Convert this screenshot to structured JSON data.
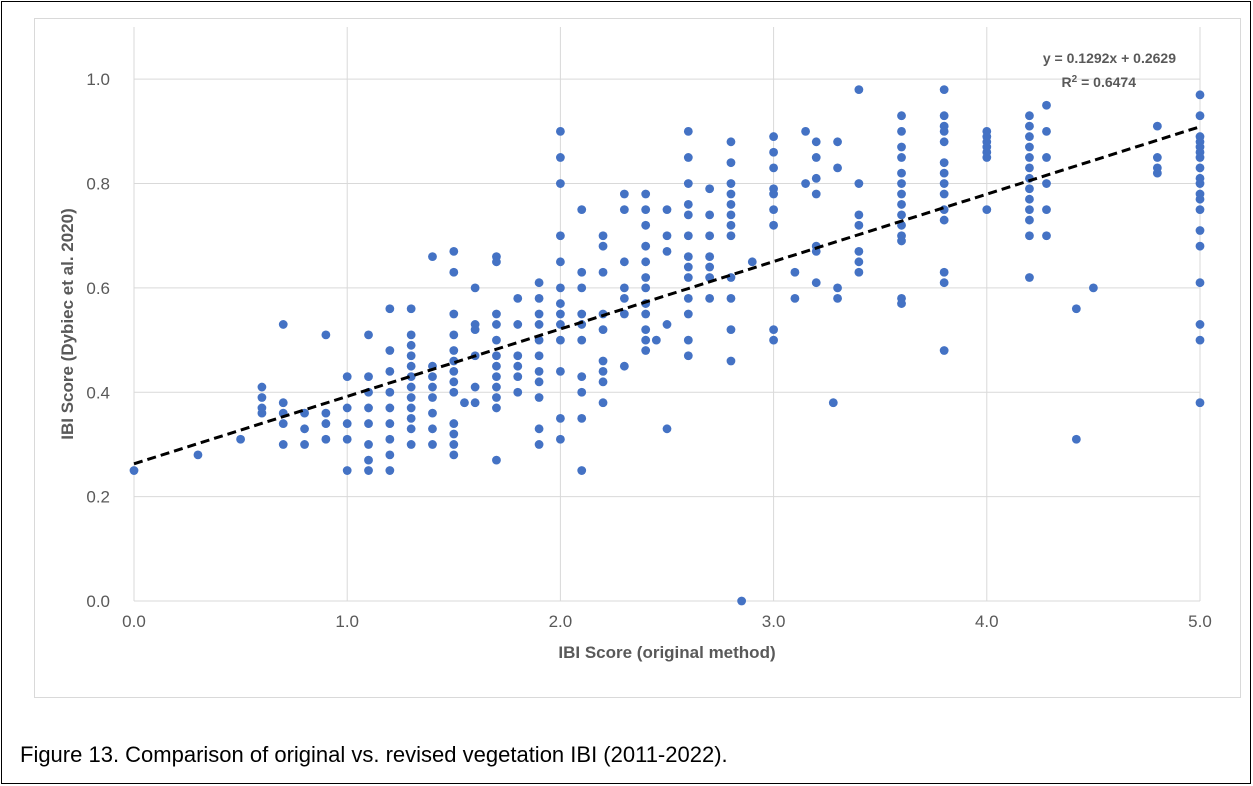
{
  "figure": {
    "caption": "Figure 13. Comparison of original vs. revised vegetation IBI (2011-2022)."
  },
  "chart_data": {
    "type": "scatter",
    "title": "",
    "xlabel": "IBI Score (original method)",
    "ylabel": "IBI Score (Dybiec et al. 2020)",
    "xlim": [
      0,
      5
    ],
    "ylim": [
      0,
      1.1
    ],
    "x_ticks": [
      "0.0",
      "1.0",
      "2.0",
      "3.0",
      "4.0",
      "5.0"
    ],
    "y_ticks": [
      "0.0",
      "0.2",
      "0.4",
      "0.6",
      "0.8",
      "1.0"
    ],
    "grid": true,
    "legend": "none",
    "colors": {
      "points": "#4472c4",
      "trendline": "#000000",
      "grid": "#d9d9d9",
      "text": "#595959"
    },
    "trendline": {
      "slope": 0.1292,
      "intercept": 0.2629,
      "equation": "y = 0.1292x + 0.2629",
      "r2_label": "R",
      "r2_exp": "2",
      "r2_value": " = 0.6474"
    },
    "points": [
      [
        0,
        0.25
      ],
      [
        0.3,
        0.28
      ],
      [
        0.5,
        0.31
      ],
      [
        0.6,
        0.41
      ],
      [
        0.6,
        0.39
      ],
      [
        0.6,
        0.37
      ],
      [
        0.6,
        0.36
      ],
      [
        0.7,
        0.53
      ],
      [
        0.7,
        0.38
      ],
      [
        0.7,
        0.36
      ],
      [
        0.7,
        0.34
      ],
      [
        0.7,
        0.3
      ],
      [
        0.8,
        0.36
      ],
      [
        0.8,
        0.33
      ],
      [
        0.8,
        0.3
      ],
      [
        0.9,
        0.51
      ],
      [
        0.9,
        0.36
      ],
      [
        0.9,
        0.34
      ],
      [
        0.9,
        0.31
      ],
      [
        1.0,
        0.43
      ],
      [
        1.0,
        0.37
      ],
      [
        1.0,
        0.34
      ],
      [
        1.0,
        0.31
      ],
      [
        1.0,
        0.25
      ],
      [
        1.1,
        0.51
      ],
      [
        1.1,
        0.43
      ],
      [
        1.1,
        0.4
      ],
      [
        1.1,
        0.37
      ],
      [
        1.1,
        0.34
      ],
      [
        1.1,
        0.3
      ],
      [
        1.1,
        0.27
      ],
      [
        1.1,
        0.25
      ],
      [
        1.2,
        0.56
      ],
      [
        1.2,
        0.48
      ],
      [
        1.2,
        0.44
      ],
      [
        1.2,
        0.4
      ],
      [
        1.2,
        0.37
      ],
      [
        1.2,
        0.34
      ],
      [
        1.2,
        0.31
      ],
      [
        1.2,
        0.28
      ],
      [
        1.2,
        0.25
      ],
      [
        1.3,
        0.56
      ],
      [
        1.3,
        0.51
      ],
      [
        1.3,
        0.49
      ],
      [
        1.3,
        0.47
      ],
      [
        1.3,
        0.45
      ],
      [
        1.3,
        0.43
      ],
      [
        1.3,
        0.41
      ],
      [
        1.3,
        0.39
      ],
      [
        1.3,
        0.37
      ],
      [
        1.3,
        0.35
      ],
      [
        1.3,
        0.33
      ],
      [
        1.3,
        0.3
      ],
      [
        1.4,
        0.66
      ],
      [
        1.4,
        0.45
      ],
      [
        1.4,
        0.43
      ],
      [
        1.4,
        0.41
      ],
      [
        1.4,
        0.39
      ],
      [
        1.4,
        0.36
      ],
      [
        1.4,
        0.33
      ],
      [
        1.4,
        0.3
      ],
      [
        1.5,
        0.67
      ],
      [
        1.5,
        0.63
      ],
      [
        1.5,
        0.55
      ],
      [
        1.5,
        0.51
      ],
      [
        1.5,
        0.48
      ],
      [
        1.5,
        0.46
      ],
      [
        1.5,
        0.44
      ],
      [
        1.5,
        0.42
      ],
      [
        1.5,
        0.4
      ],
      [
        1.5,
        0.34
      ],
      [
        1.5,
        0.32
      ],
      [
        1.5,
        0.3
      ],
      [
        1.5,
        0.28
      ],
      [
        1.6,
        0.6
      ],
      [
        1.6,
        0.53
      ],
      [
        1.6,
        0.52
      ],
      [
        1.6,
        0.47
      ],
      [
        1.6,
        0.41
      ],
      [
        1.6,
        0.38
      ],
      [
        1.55,
        0.38
      ],
      [
        1.7,
        0.66
      ],
      [
        1.7,
        0.65
      ],
      [
        1.7,
        0.55
      ],
      [
        1.7,
        0.53
      ],
      [
        1.7,
        0.5
      ],
      [
        1.7,
        0.47
      ],
      [
        1.7,
        0.45
      ],
      [
        1.7,
        0.43
      ],
      [
        1.7,
        0.41
      ],
      [
        1.7,
        0.39
      ],
      [
        1.7,
        0.37
      ],
      [
        1.7,
        0.27
      ],
      [
        1.8,
        0.58
      ],
      [
        1.8,
        0.53
      ],
      [
        1.8,
        0.47
      ],
      [
        1.8,
        0.45
      ],
      [
        1.8,
        0.43
      ],
      [
        1.8,
        0.4
      ],
      [
        1.9,
        0.61
      ],
      [
        1.9,
        0.58
      ],
      [
        1.9,
        0.55
      ],
      [
        1.9,
        0.53
      ],
      [
        1.9,
        0.5
      ],
      [
        1.9,
        0.47
      ],
      [
        1.9,
        0.44
      ],
      [
        1.9,
        0.42
      ],
      [
        1.9,
        0.39
      ],
      [
        1.9,
        0.33
      ],
      [
        1.9,
        0.3
      ],
      [
        2.0,
        0.9
      ],
      [
        2.0,
        0.85
      ],
      [
        2.0,
        0.8
      ],
      [
        2.0,
        0.7
      ],
      [
        2.0,
        0.65
      ],
      [
        2.0,
        0.6
      ],
      [
        2.0,
        0.57
      ],
      [
        2.0,
        0.55
      ],
      [
        2.0,
        0.53
      ],
      [
        2.0,
        0.5
      ],
      [
        2.0,
        0.44
      ],
      [
        2.0,
        0.35
      ],
      [
        2.0,
        0.31
      ],
      [
        2.1,
        0.75
      ],
      [
        2.1,
        0.63
      ],
      [
        2.1,
        0.6
      ],
      [
        2.1,
        0.55
      ],
      [
        2.1,
        0.53
      ],
      [
        2.1,
        0.5
      ],
      [
        2.1,
        0.43
      ],
      [
        2.1,
        0.4
      ],
      [
        2.1,
        0.35
      ],
      [
        2.1,
        0.25
      ],
      [
        2.2,
        0.7
      ],
      [
        2.2,
        0.68
      ],
      [
        2.2,
        0.63
      ],
      [
        2.2,
        0.55
      ],
      [
        2.2,
        0.52
      ],
      [
        2.2,
        0.46
      ],
      [
        2.2,
        0.44
      ],
      [
        2.2,
        0.42
      ],
      [
        2.2,
        0.38
      ],
      [
        2.3,
        0.78
      ],
      [
        2.3,
        0.75
      ],
      [
        2.3,
        0.65
      ],
      [
        2.3,
        0.6
      ],
      [
        2.3,
        0.58
      ],
      [
        2.3,
        0.55
      ],
      [
        2.3,
        0.45
      ],
      [
        2.4,
        0.78
      ],
      [
        2.4,
        0.75
      ],
      [
        2.4,
        0.72
      ],
      [
        2.4,
        0.68
      ],
      [
        2.4,
        0.65
      ],
      [
        2.4,
        0.62
      ],
      [
        2.4,
        0.6
      ],
      [
        2.4,
        0.57
      ],
      [
        2.4,
        0.55
      ],
      [
        2.4,
        0.52
      ],
      [
        2.4,
        0.5
      ],
      [
        2.4,
        0.48
      ],
      [
        2.45,
        0.5
      ],
      [
        2.5,
        0.75
      ],
      [
        2.5,
        0.7
      ],
      [
        2.5,
        0.67
      ],
      [
        2.5,
        0.53
      ],
      [
        2.5,
        0.33
      ],
      [
        2.6,
        0.9
      ],
      [
        2.6,
        0.85
      ],
      [
        2.6,
        0.8
      ],
      [
        2.6,
        0.76
      ],
      [
        2.6,
        0.74
      ],
      [
        2.6,
        0.7
      ],
      [
        2.6,
        0.66
      ],
      [
        2.6,
        0.64
      ],
      [
        2.6,
        0.62
      ],
      [
        2.6,
        0.58
      ],
      [
        2.6,
        0.55
      ],
      [
        2.6,
        0.5
      ],
      [
        2.6,
        0.47
      ],
      [
        2.7,
        0.79
      ],
      [
        2.7,
        0.74
      ],
      [
        2.7,
        0.7
      ],
      [
        2.7,
        0.66
      ],
      [
        2.7,
        0.64
      ],
      [
        2.7,
        0.62
      ],
      [
        2.7,
        0.58
      ],
      [
        2.8,
        0.88
      ],
      [
        2.8,
        0.84
      ],
      [
        2.8,
        0.8
      ],
      [
        2.8,
        0.78
      ],
      [
        2.8,
        0.76
      ],
      [
        2.8,
        0.74
      ],
      [
        2.8,
        0.72
      ],
      [
        2.8,
        0.7
      ],
      [
        2.8,
        0.62
      ],
      [
        2.8,
        0.58
      ],
      [
        2.8,
        0.52
      ],
      [
        2.8,
        0.46
      ],
      [
        2.85,
        0.0
      ],
      [
        2.9,
        0.65
      ],
      [
        3.0,
        0.89
      ],
      [
        3.0,
        0.86
      ],
      [
        3.0,
        0.83
      ],
      [
        3.0,
        0.79
      ],
      [
        3.0,
        0.78
      ],
      [
        3.0,
        0.75
      ],
      [
        3.0,
        0.72
      ],
      [
        3.0,
        0.52
      ],
      [
        3.0,
        0.5
      ],
      [
        3.1,
        0.63
      ],
      [
        3.1,
        0.58
      ],
      [
        3.15,
        0.9
      ],
      [
        3.15,
        0.8
      ],
      [
        3.2,
        0.88
      ],
      [
        3.2,
        0.85
      ],
      [
        3.2,
        0.81
      ],
      [
        3.2,
        0.78
      ],
      [
        3.2,
        0.68
      ],
      [
        3.2,
        0.67
      ],
      [
        3.2,
        0.61
      ],
      [
        3.3,
        0.88
      ],
      [
        3.3,
        0.83
      ],
      [
        3.3,
        0.6
      ],
      [
        3.3,
        0.58
      ],
      [
        3.28,
        0.38
      ],
      [
        3.4,
        0.98
      ],
      [
        3.4,
        0.8
      ],
      [
        3.4,
        0.74
      ],
      [
        3.4,
        0.72
      ],
      [
        3.4,
        0.67
      ],
      [
        3.4,
        0.65
      ],
      [
        3.4,
        0.63
      ],
      [
        3.6,
        0.93
      ],
      [
        3.6,
        0.9
      ],
      [
        3.6,
        0.87
      ],
      [
        3.6,
        0.85
      ],
      [
        3.6,
        0.82
      ],
      [
        3.6,
        0.8
      ],
      [
        3.6,
        0.78
      ],
      [
        3.6,
        0.76
      ],
      [
        3.6,
        0.74
      ],
      [
        3.6,
        0.72
      ],
      [
        3.6,
        0.7
      ],
      [
        3.6,
        0.69
      ],
      [
        3.6,
        0.58
      ],
      [
        3.6,
        0.57
      ],
      [
        3.8,
        0.98
      ],
      [
        3.8,
        0.93
      ],
      [
        3.8,
        0.91
      ],
      [
        3.8,
        0.9
      ],
      [
        3.8,
        0.88
      ],
      [
        3.8,
        0.84
      ],
      [
        3.8,
        0.82
      ],
      [
        3.8,
        0.8
      ],
      [
        3.8,
        0.78
      ],
      [
        3.8,
        0.75
      ],
      [
        3.8,
        0.73
      ],
      [
        3.8,
        0.63
      ],
      [
        3.8,
        0.61
      ],
      [
        3.8,
        0.48
      ],
      [
        4.0,
        0.9
      ],
      [
        4.0,
        0.89
      ],
      [
        4.0,
        0.88
      ],
      [
        4.0,
        0.87
      ],
      [
        4.0,
        0.86
      ],
      [
        4.0,
        0.85
      ],
      [
        4.0,
        0.75
      ],
      [
        4.2,
        0.93
      ],
      [
        4.2,
        0.91
      ],
      [
        4.2,
        0.89
      ],
      [
        4.2,
        0.87
      ],
      [
        4.2,
        0.85
      ],
      [
        4.2,
        0.83
      ],
      [
        4.2,
        0.81
      ],
      [
        4.2,
        0.79
      ],
      [
        4.2,
        0.77
      ],
      [
        4.2,
        0.75
      ],
      [
        4.2,
        0.73
      ],
      [
        4.2,
        0.7
      ],
      [
        4.2,
        0.62
      ],
      [
        4.28,
        0.95
      ],
      [
        4.28,
        0.9
      ],
      [
        4.28,
        0.85
      ],
      [
        4.28,
        0.8
      ],
      [
        4.28,
        0.75
      ],
      [
        4.28,
        0.7
      ],
      [
        4.42,
        0.56
      ],
      [
        4.42,
        0.31
      ],
      [
        4.5,
        0.6
      ],
      [
        4.8,
        0.91
      ],
      [
        4.8,
        0.85
      ],
      [
        4.8,
        0.83
      ],
      [
        4.8,
        0.82
      ],
      [
        5.0,
        0.97
      ],
      [
        5.0,
        0.93
      ],
      [
        5.0,
        0.89
      ],
      [
        5.0,
        0.88
      ],
      [
        5.0,
        0.87
      ],
      [
        5.0,
        0.86
      ],
      [
        5.0,
        0.85
      ],
      [
        5.0,
        0.83
      ],
      [
        5.0,
        0.81
      ],
      [
        5.0,
        0.8
      ],
      [
        5.0,
        0.78
      ],
      [
        5.0,
        0.77
      ],
      [
        5.0,
        0.75
      ],
      [
        5.0,
        0.71
      ],
      [
        5.0,
        0.68
      ],
      [
        5.0,
        0.61
      ],
      [
        5.0,
        0.53
      ],
      [
        5.0,
        0.5
      ],
      [
        5.0,
        0.38
      ]
    ]
  }
}
